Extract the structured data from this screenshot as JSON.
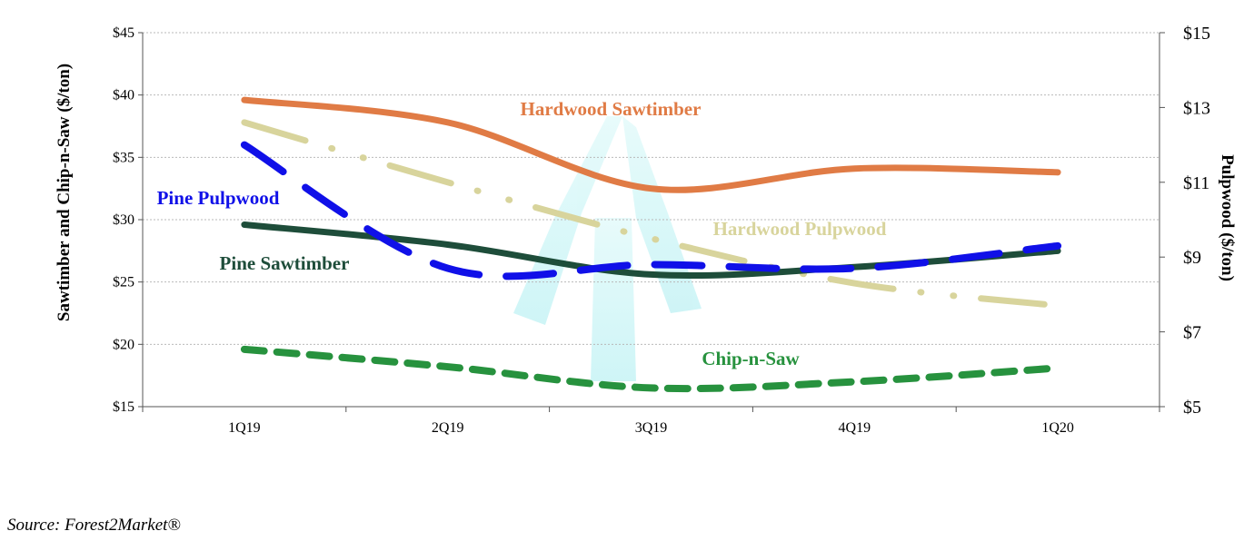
{
  "chart_data": {
    "type": "line",
    "title": "",
    "categories": [
      "1Q19",
      "2Q19",
      "3Q19",
      "4Q19",
      "1Q20"
    ],
    "xlabel": "",
    "ylabel": "Sawtimber and Chip-n-Saw ($/ton)",
    "y2label": "Pulpwood ($/ton)",
    "ylim": [
      15,
      45
    ],
    "y2lim": [
      5,
      15
    ],
    "yticks": [
      "$15",
      "$20",
      "$25",
      "$30",
      "$35",
      "$40",
      "$45"
    ],
    "y2ticks": [
      "$5",
      "$7",
      "$9",
      "$11",
      "$13",
      "$15"
    ],
    "grid": true,
    "series": [
      {
        "name": "Hardwood Sawtimber",
        "axis": "left",
        "values": [
          39.6,
          37.8,
          32.5,
          34.1,
          33.8
        ],
        "color": "#e07b45",
        "style": "solid"
      },
      {
        "name": "Pine Sawtimber",
        "axis": "left",
        "values": [
          29.6,
          28.0,
          25.6,
          26.2,
          27.5
        ],
        "color": "#1e4d3a",
        "style": "solid"
      },
      {
        "name": "Chip-n-Saw",
        "axis": "left",
        "values": [
          19.6,
          18.2,
          16.5,
          17.0,
          18.1
        ],
        "color": "#27923e",
        "style": "dashed"
      },
      {
        "name": "Pine Pulpwood",
        "axis": "right",
        "values": [
          12.0,
          8.7,
          8.8,
          8.7,
          9.3
        ],
        "color": "#1010e8",
        "style": "longdash"
      },
      {
        "name": "Hardwood Pulpwood",
        "axis": "right",
        "values": [
          12.6,
          11.0,
          9.5,
          8.3,
          7.7
        ],
        "color": "#d8d49c",
        "style": "dashdot"
      }
    ]
  },
  "source": "Source: Forest2Market®"
}
